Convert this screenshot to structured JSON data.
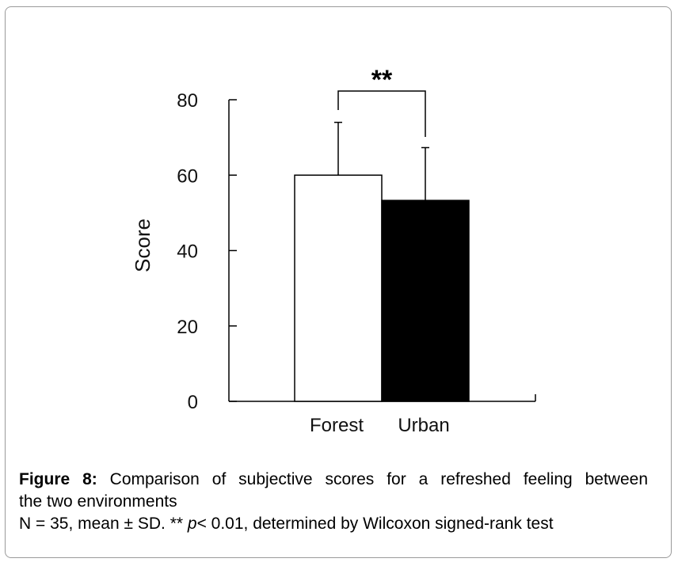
{
  "chart_data": {
    "type": "bar",
    "categories": [
      "Forest",
      "Urban"
    ],
    "values": [
      60,
      53.3
    ],
    "error_sd": [
      14,
      14
    ],
    "ylabel": "Score",
    "ylim": [
      0,
      80
    ],
    "yticks": [
      "0",
      "20",
      "40",
      "60",
      "80"
    ],
    "bar_colors": [
      "#ffffff",
      "#000000"
    ],
    "significance": {
      "label": "**",
      "between": [
        "Forest",
        "Urban"
      ]
    },
    "grid": false
  },
  "caption": {
    "figure_label": "Figure 8:",
    "title_text": " Comparison of subjective scores for a refreshed feeling between",
    "title_text_cont": "the two environments",
    "note_prefix": "N = 35, mean ± SD. ** ",
    "note_italic": "p",
    "note_suffix": "< 0.01, determined by Wilcoxon signed-rank test"
  }
}
